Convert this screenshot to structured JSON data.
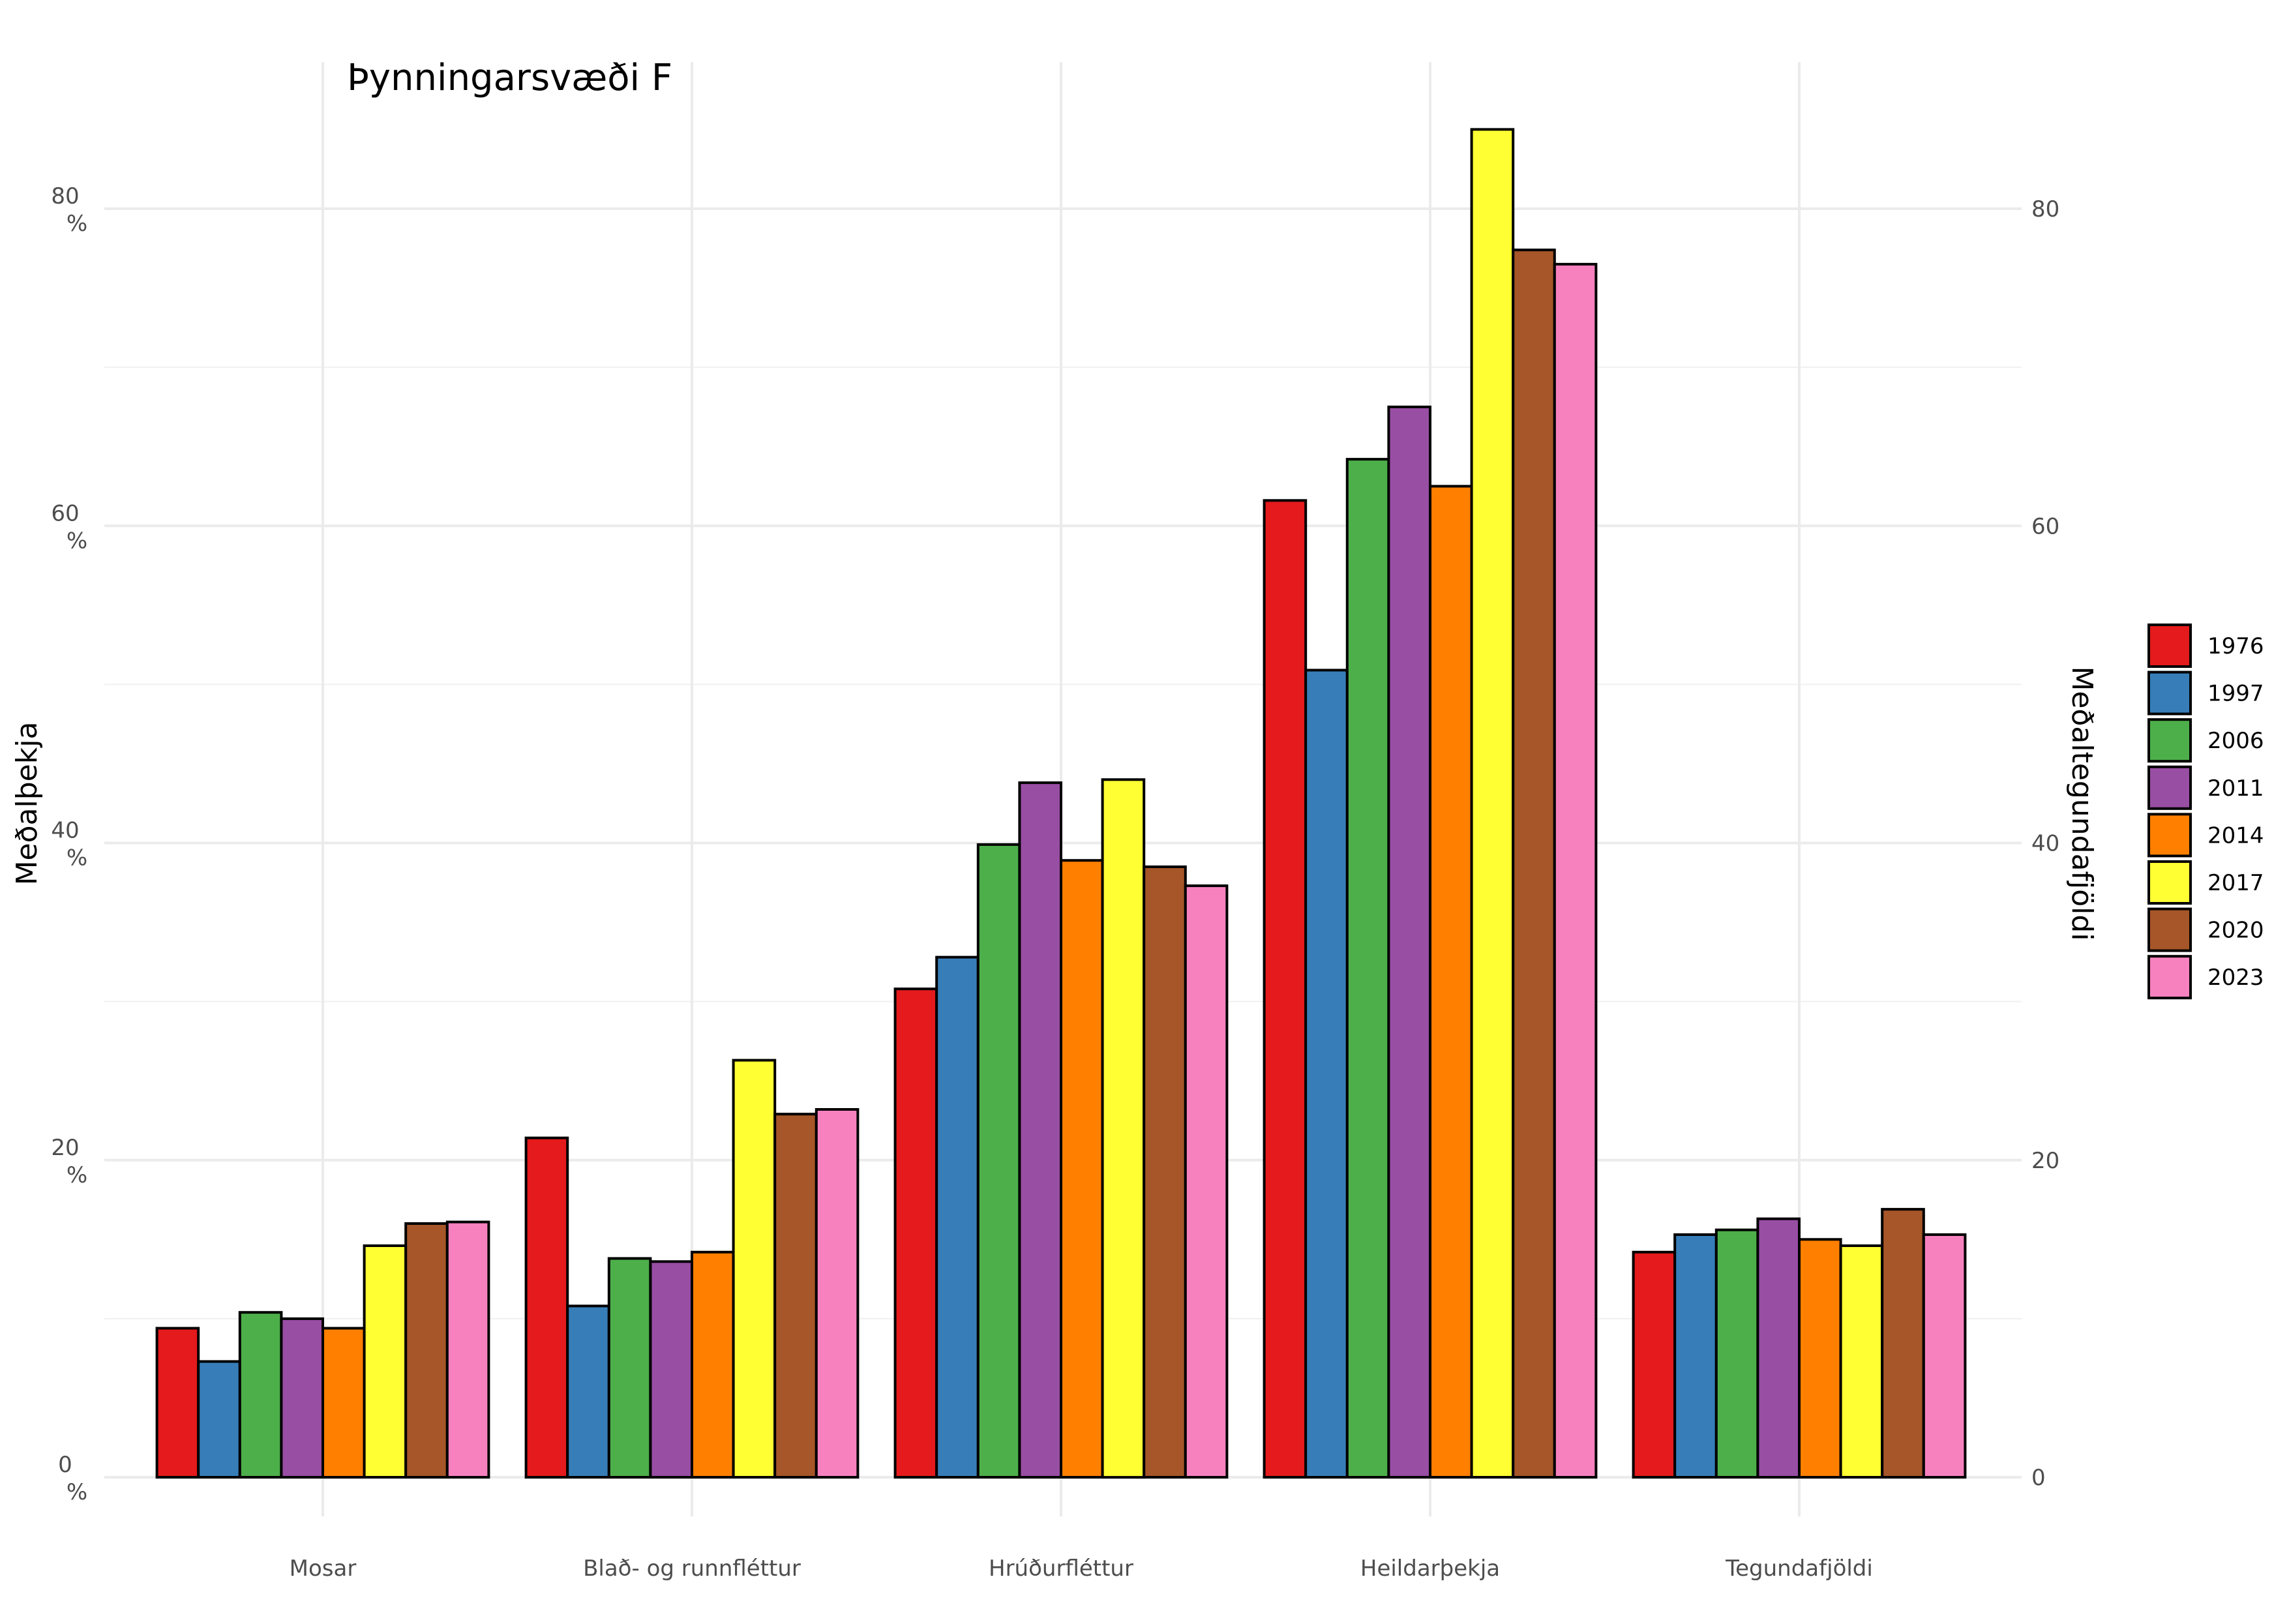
{
  "chart_data": {
    "type": "bar",
    "title": "Þynningarsvæði F",
    "ylabel": "Meðalþekja",
    "ylabel_right": "Meðaltegundafjöldi",
    "xlabel": "",
    "ylim": [
      0,
      89
    ],
    "y_ticks": [
      {
        "value": 0,
        "label": "0",
        "unit": "%"
      },
      {
        "value": 20,
        "label": "20",
        "unit": "%"
      },
      {
        "value": 40,
        "label": "40",
        "unit": "%"
      },
      {
        "value": 60,
        "label": "60",
        "unit": "%"
      },
      {
        "value": 80,
        "label": "80",
        "unit": "%"
      }
    ],
    "y_ticks_right": [
      "0",
      "20",
      "40",
      "60",
      "80"
    ],
    "grid": true,
    "legend_position": "right",
    "categories": [
      "Mosar",
      "Blað- og runnfléttur",
      "Hrúðurfléttur",
      "Heildarþekja",
      "Tegundafjöldi"
    ],
    "series": [
      {
        "name": "1976",
        "color": "#E41A1C",
        "values": [
          9.4,
          21.4,
          30.8,
          61.6,
          14.2
        ]
      },
      {
        "name": "1997",
        "color": "#377EB8",
        "values": [
          7.3,
          10.8,
          32.8,
          50.9,
          15.3
        ]
      },
      {
        "name": "2006",
        "color": "#4DAF4A",
        "values": [
          10.4,
          13.8,
          39.9,
          64.2,
          15.6
        ]
      },
      {
        "name": "2011",
        "color": "#984EA3",
        "values": [
          10.0,
          13.6,
          43.8,
          67.5,
          16.3
        ]
      },
      {
        "name": "2014",
        "color": "#FF7F00",
        "values": [
          9.4,
          14.2,
          38.9,
          62.5,
          15.0
        ]
      },
      {
        "name": "2017",
        "color": "#FFFF33",
        "values": [
          14.6,
          26.3,
          44.0,
          85.0,
          14.6
        ]
      },
      {
        "name": "2020",
        "color": "#A65628",
        "values": [
          16.0,
          22.9,
          38.5,
          77.4,
          16.9
        ]
      },
      {
        "name": "2023",
        "color": "#F781BF",
        "values": [
          16.1,
          23.2,
          37.3,
          76.5,
          15.3
        ]
      }
    ]
  }
}
